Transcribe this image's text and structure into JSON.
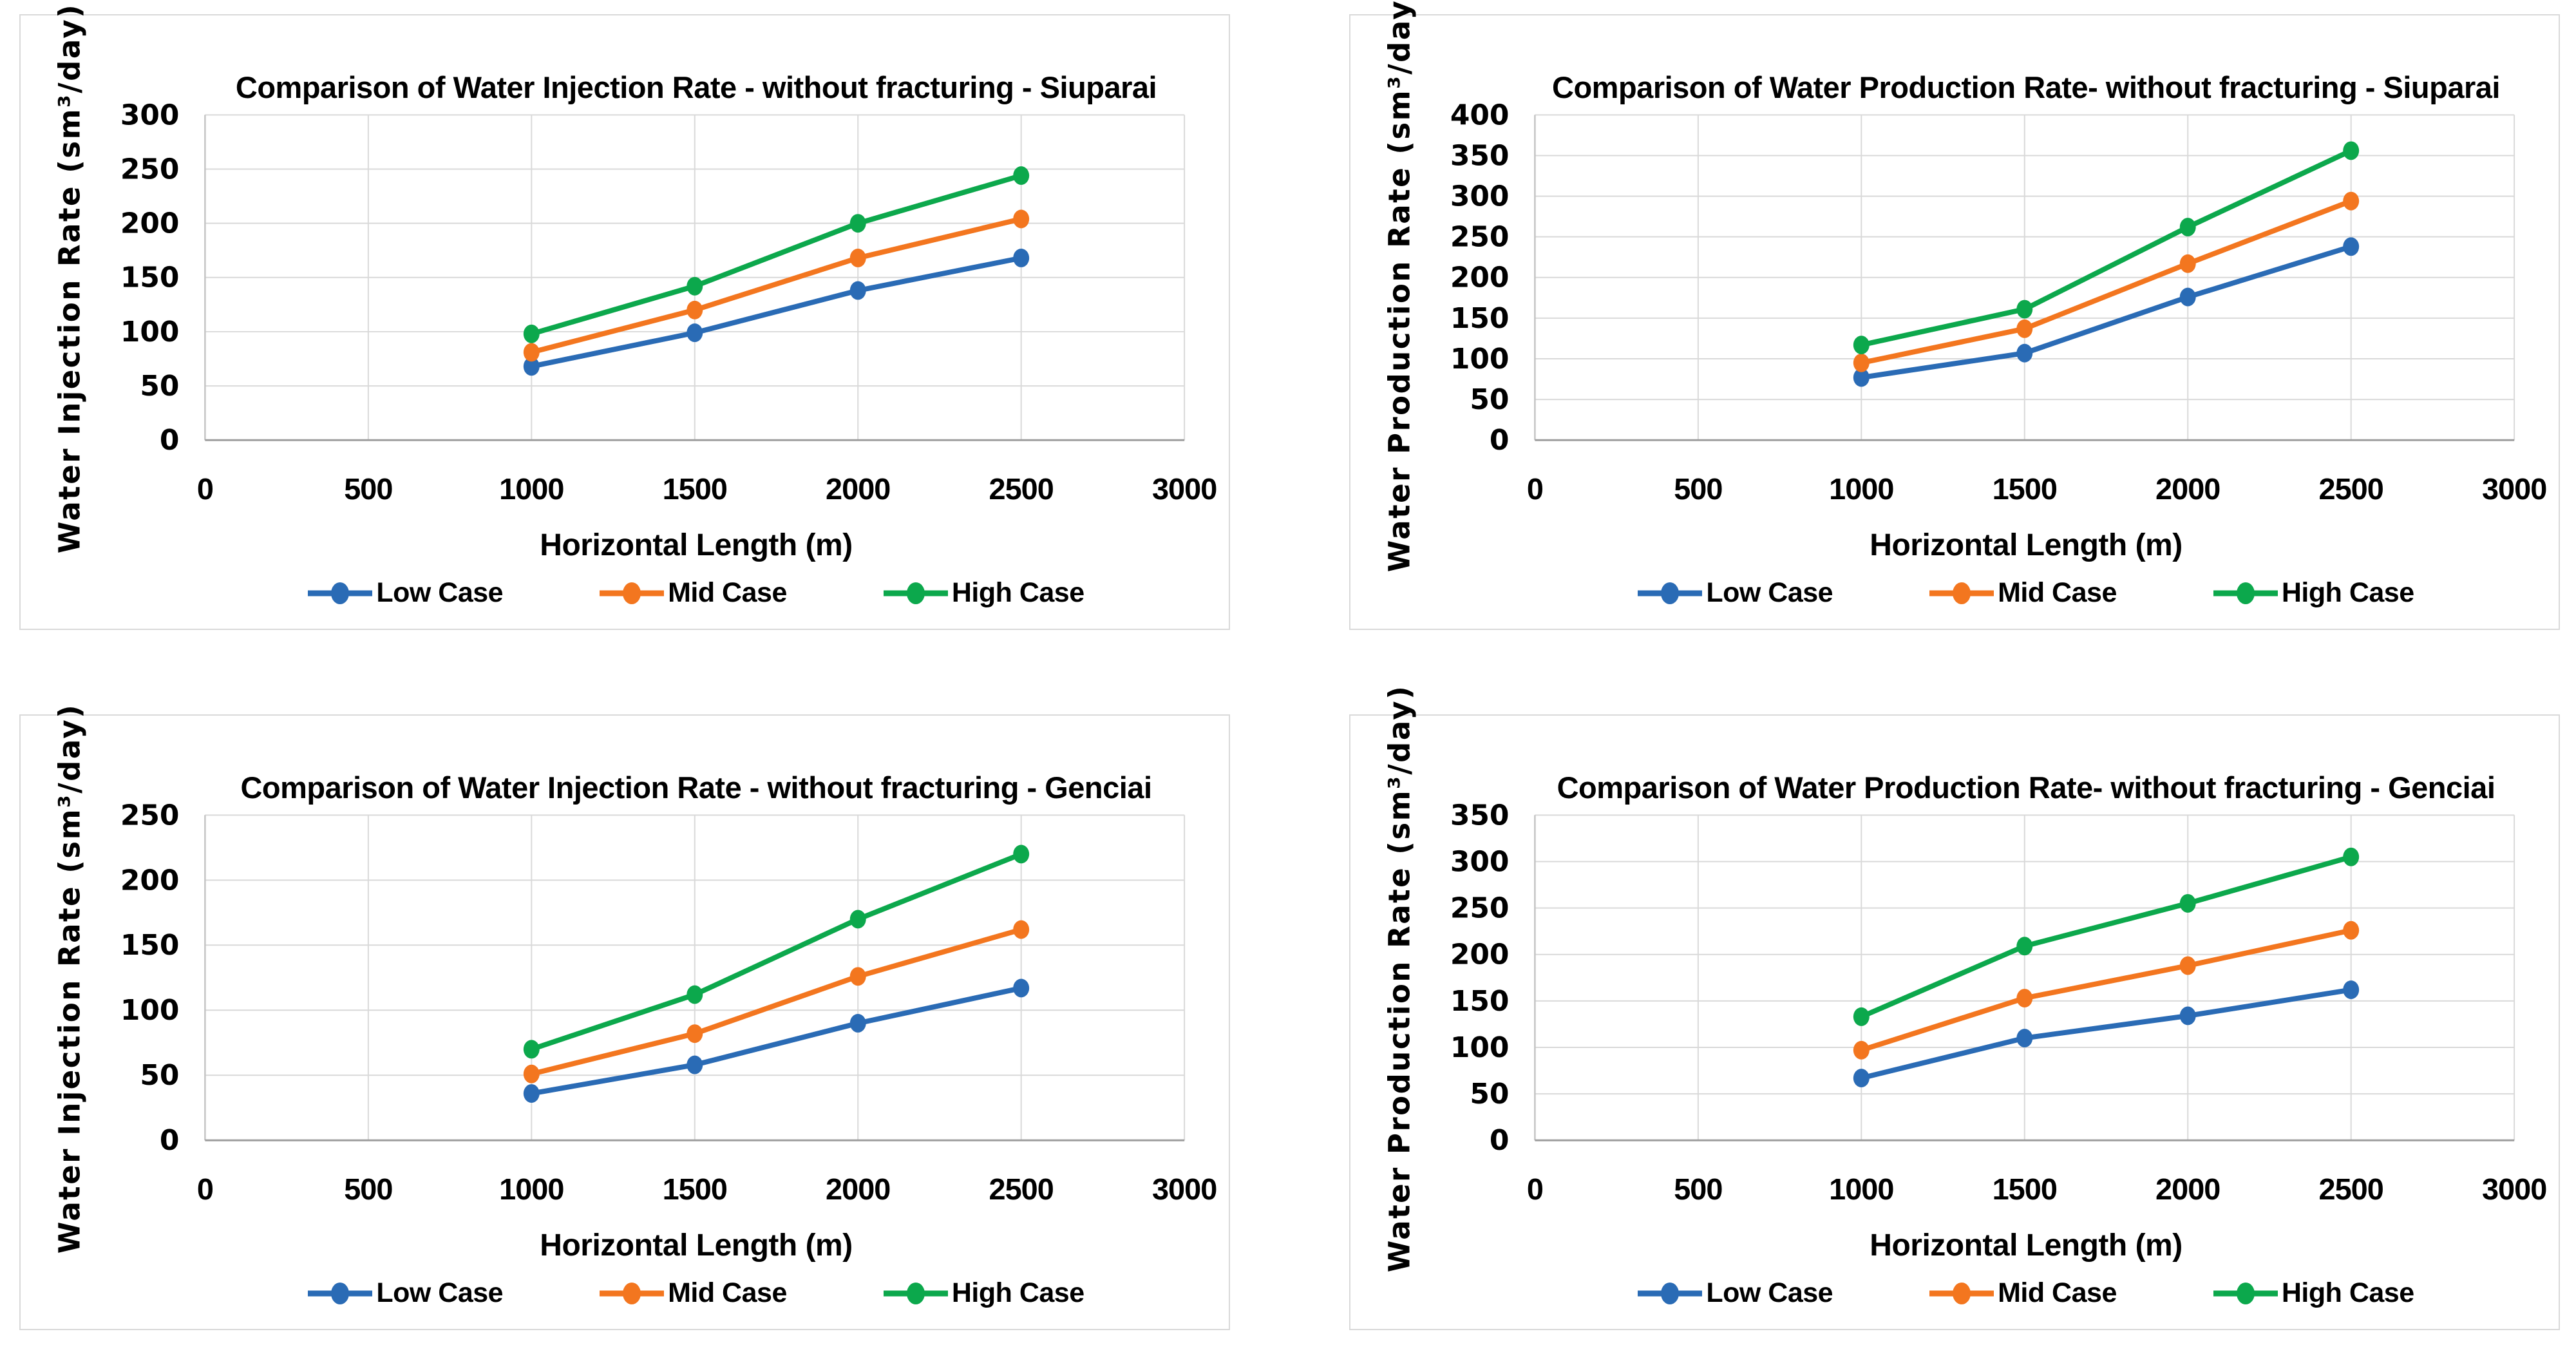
{
  "figure": {
    "background": "#FFFFFF",
    "panel_border_color": "#D9D9D9",
    "gridline_color": "#D9D9D9",
    "y_axis_line_color": "#C4C4C4",
    "x_axis_line_color": "#9E9E9E",
    "legend_marker_icon": "line-with-circle-marker"
  },
  "chart_data": [
    {
      "type": "line",
      "title": "Comparison of Water Injection Rate - without fracturing - Siuparai",
      "xlabel": "Horizontal Length (m)",
      "ylabel": "Water Injection Rate (sm³/day)",
      "xlim": [
        0,
        3000
      ],
      "xtick_step": 500,
      "ylim": [
        0,
        300
      ],
      "ytick_step": 50,
      "grid": true,
      "legend_position": "bottom",
      "x": [
        1000,
        1500,
        2000,
        2500
      ],
      "series": [
        {
          "name": "Low Case",
          "color": "#2A6BB5",
          "values": [
            68,
            99,
            138,
            168
          ]
        },
        {
          "name": "Mid Case",
          "color": "#F3761F",
          "values": [
            81,
            120,
            168,
            204
          ]
        },
        {
          "name": "High Case",
          "color": "#0CA84C",
          "values": [
            98,
            142,
            200,
            244
          ]
        }
      ]
    },
    {
      "type": "line",
      "title": "Comparison of Water Production Rate- without fracturing - Siuparai",
      "xlabel": "Horizontal Length (m)",
      "ylabel": "Water Production Rate (sm³/day)",
      "xlim": [
        0,
        3000
      ],
      "xtick_step": 500,
      "ylim": [
        0,
        400
      ],
      "ytick_step": 50,
      "grid": true,
      "legend_position": "bottom",
      "x": [
        1000,
        1500,
        2000,
        2500
      ],
      "series": [
        {
          "name": "Low Case",
          "color": "#2A6BB5",
          "values": [
            77,
            107,
            176,
            238
          ]
        },
        {
          "name": "Mid Case",
          "color": "#F3761F",
          "values": [
            95,
            137,
            217,
            294
          ]
        },
        {
          "name": "High Case",
          "color": "#0CA84C",
          "values": [
            117,
            161,
            262,
            356
          ]
        }
      ]
    },
    {
      "type": "line",
      "title": "Comparison of Water Injection Rate - without fracturing - Genciai",
      "xlabel": "Horizontal Length (m)",
      "ylabel": "Water Injection Rate (sm³/day)",
      "xlim": [
        0,
        3000
      ],
      "xtick_step": 500,
      "ylim": [
        0,
        250
      ],
      "ytick_step": 50,
      "grid": true,
      "legend_position": "bottom",
      "x": [
        1000,
        1500,
        2000,
        2500
      ],
      "series": [
        {
          "name": "Low Case",
          "color": "#2A6BB5",
          "values": [
            36,
            58,
            90,
            117
          ]
        },
        {
          "name": "Mid Case",
          "color": "#F3761F",
          "values": [
            51,
            82,
            126,
            162
          ]
        },
        {
          "name": "High Case",
          "color": "#0CA84C",
          "values": [
            70,
            112,
            170,
            220
          ]
        }
      ]
    },
    {
      "type": "line",
      "title": "Comparison of Water Production Rate- without fracturing - Genciai",
      "xlabel": "Horizontal Length (m)",
      "ylabel": "Water Production Rate (sm³/day)",
      "xlim": [
        0,
        3000
      ],
      "xtick_step": 500,
      "ylim": [
        0,
        350
      ],
      "ytick_step": 50,
      "grid": true,
      "legend_position": "bottom",
      "x": [
        1000,
        1500,
        2000,
        2500
      ],
      "series": [
        {
          "name": "Low Case",
          "color": "#2A6BB5",
          "values": [
            67,
            110,
            134,
            162
          ]
        },
        {
          "name": "Mid Case",
          "color": "#F3761F",
          "values": [
            97,
            153,
            188,
            226
          ]
        },
        {
          "name": "High Case",
          "color": "#0CA84C",
          "values": [
            133,
            209,
            255,
            305
          ]
        }
      ]
    }
  ]
}
